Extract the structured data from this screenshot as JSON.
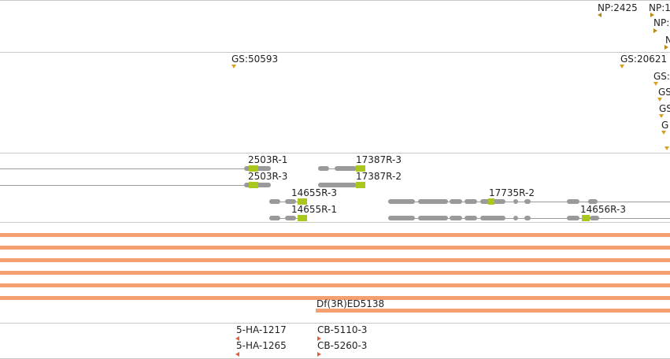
{
  "np_track": {
    "labels": [
      "NP:2425",
      "NP:1"
    ]
  },
  "gs_track": {
    "labels": [
      "GS:50593",
      "GS:20621",
      "GS:",
      "GS",
      "GS",
      "G"
    ]
  },
  "transcripts": {
    "labels": [
      "2503R-1",
      "2503R-3",
      "17387R-3",
      "17387R-2",
      "14655R-3",
      "14655R-1",
      "17735R-2",
      "14656R-3"
    ]
  },
  "deficiency": {
    "label": "Df(3R)ED5138"
  },
  "insertions": {
    "labels": [
      "5-HA-1217",
      "5-HA-1265",
      "CB-5110-3",
      "CB-5260-3"
    ]
  },
  "colors": {
    "separator": "#c8c8c8",
    "gold_marker": "#d8a020",
    "exon_gray": "#9a9a9a",
    "utr_yellow": "#a8c820",
    "deficiency_bar": "#f4a070",
    "insertion_red": "#e06040"
  }
}
